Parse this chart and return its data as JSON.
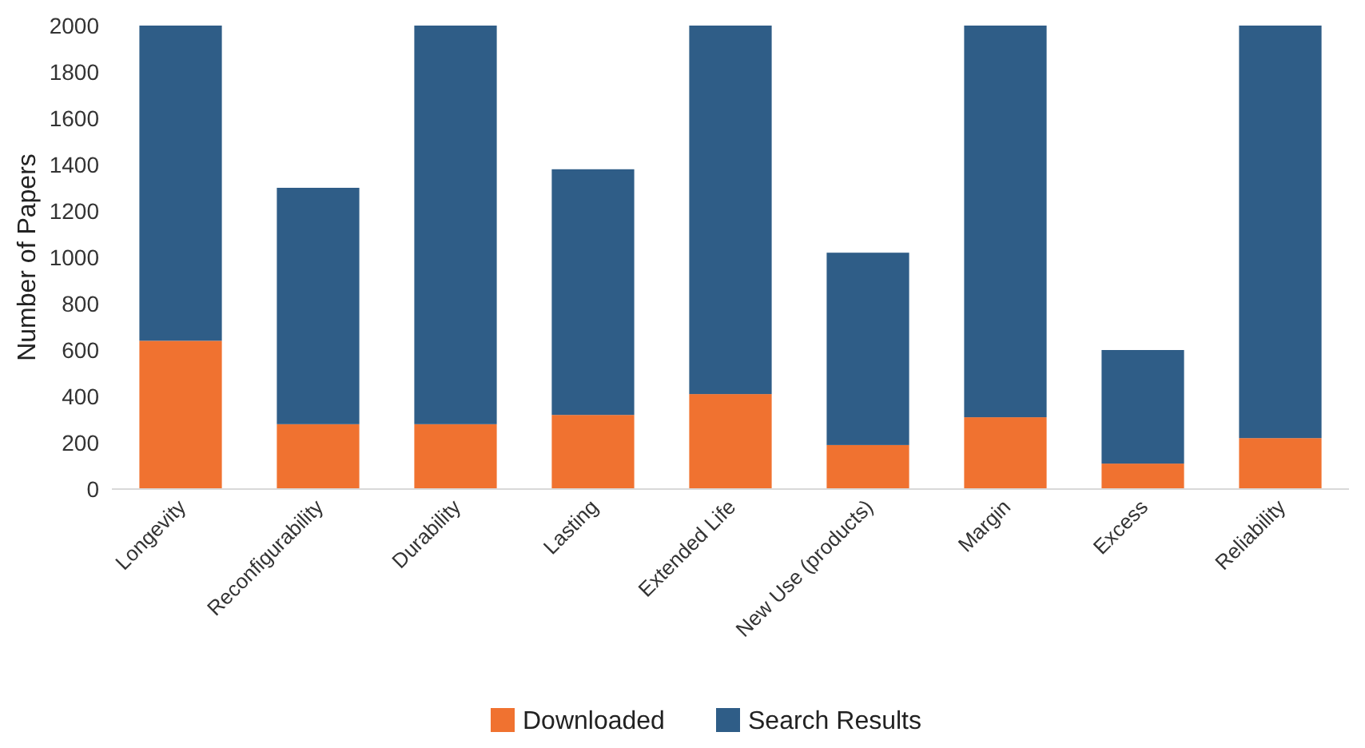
{
  "chart_data": {
    "type": "bar",
    "stacked": true,
    "ylabel": "Number of Papers",
    "categories": [
      "Longevity",
      "Reconfigurability",
      "Durability",
      "Lasting",
      "Extended Life",
      "New Use (products)",
      "Margin",
      "Excess",
      "Reliability"
    ],
    "series": [
      {
        "name": "Downloaded",
        "color": "#f07230",
        "values": [
          640,
          280,
          280,
          320,
          410,
          190,
          310,
          110,
          220
        ]
      },
      {
        "name": "Search Results",
        "color": "#2f5d87",
        "values": [
          1360,
          1020,
          1720,
          1060,
          1590,
          830,
          1690,
          490,
          1780
        ]
      }
    ],
    "ylim": [
      0,
      2000
    ],
    "yticks": [
      0,
      200,
      400,
      600,
      800,
      1000,
      1200,
      1400,
      1600,
      1800,
      2000
    ],
    "grid": false,
    "legend": "bottom"
  }
}
